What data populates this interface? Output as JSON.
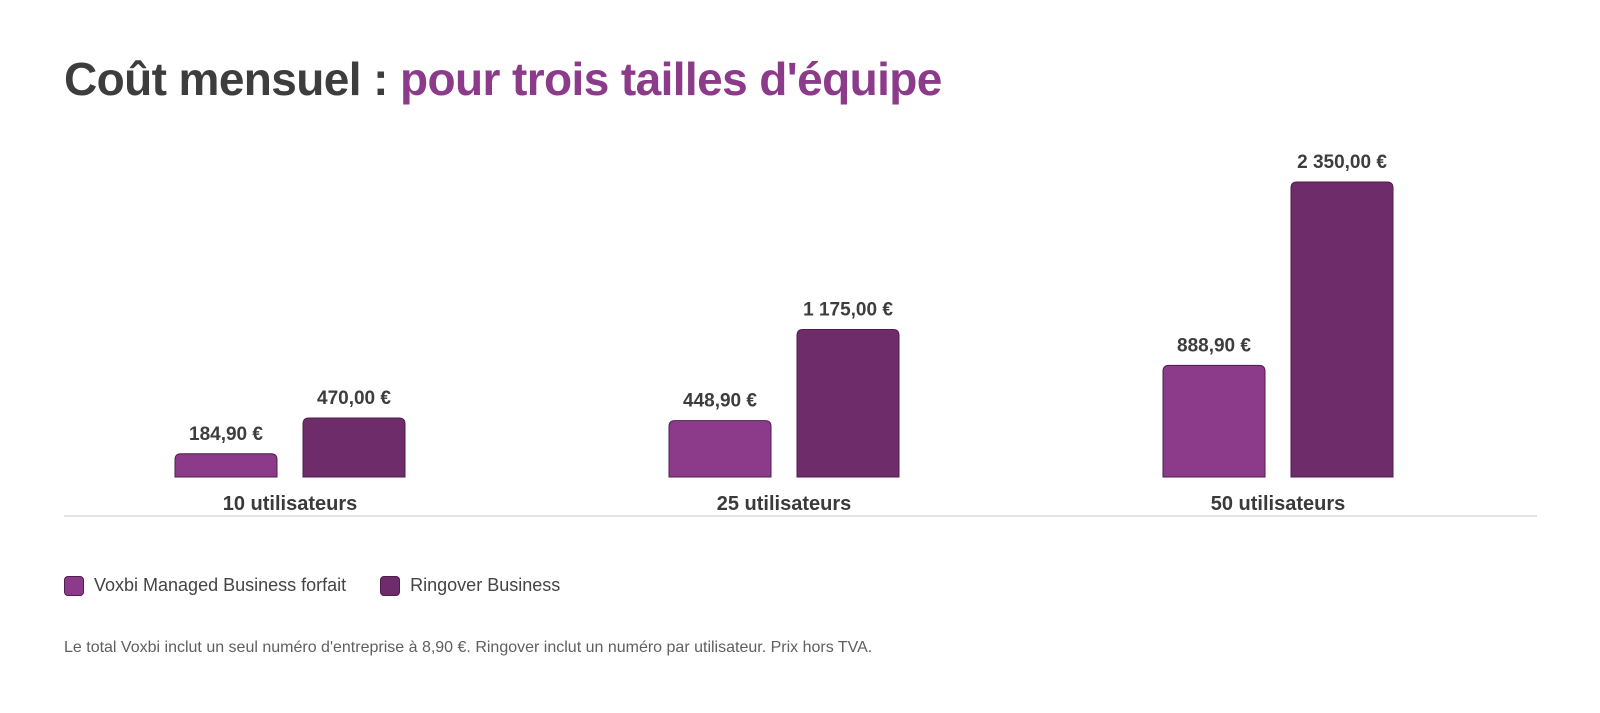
{
  "title": {
    "main": "Coût mensuel :",
    "accent": "pour trois tailles d'équipe"
  },
  "colors": {
    "title_main": "#3d3d3d",
    "title_accent": "#8c3a8a",
    "series": [
      "#8c3a8a",
      "#6e2c6a"
    ],
    "bar_border": "#4f1d4e",
    "baseline": "#e3e3e6"
  },
  "chart_data": {
    "type": "bar",
    "categories": [
      "10 utilisateurs",
      "25 utilisateurs",
      "50 utilisateurs"
    ],
    "series": [
      {
        "name": "Voxbi Managed Business forfait",
        "values": [
          184.9,
          448.9,
          888.9
        ],
        "labels": [
          "184,90 €",
          "448,90 €",
          "888,90 €"
        ]
      },
      {
        "name": "Ringover Business",
        "values": [
          470,
          1175,
          2350
        ],
        "labels": [
          "470,00 €",
          "1 175,00 €",
          "2 350,00 €"
        ]
      }
    ],
    "ylim": [
      0,
      2350
    ],
    "grid": false,
    "legend": "bottom-left"
  },
  "footnote": "Le total Voxbi inclut un seul numéro d'entreprise à 8,90 €. Ringover inclut un numéro par utilisateur. Prix hors TVA."
}
